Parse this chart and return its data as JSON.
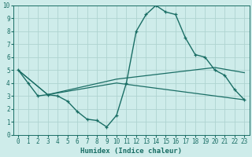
{
  "xlabel": "Humidex (Indice chaleur)",
  "xlim": [
    -0.5,
    23.5
  ],
  "ylim": [
    0,
    10
  ],
  "xtick_vals": [
    0,
    1,
    2,
    3,
    4,
    5,
    6,
    7,
    8,
    9,
    10,
    11,
    12,
    13,
    14,
    15,
    16,
    17,
    18,
    19,
    20,
    21,
    22,
    23
  ],
  "ytick_vals": [
    0,
    1,
    2,
    3,
    4,
    5,
    6,
    7,
    8,
    9,
    10
  ],
  "bg_color": "#ceecea",
  "grid_color": "#aed4d0",
  "line_color": "#1a6e65",
  "line1_x": [
    0,
    1,
    2,
    3,
    4,
    5,
    6,
    7,
    8,
    9,
    10,
    11,
    12,
    13,
    14,
    15,
    16,
    17,
    18,
    19,
    20,
    21,
    22,
    23
  ],
  "line1_y": [
    5.0,
    4.0,
    3.0,
    3.1,
    3.0,
    2.6,
    1.8,
    1.2,
    1.1,
    0.6,
    1.5,
    4.0,
    8.0,
    9.3,
    10.0,
    9.5,
    9.3,
    7.5,
    6.2,
    6.0,
    5.0,
    4.6,
    3.5,
    2.7
  ],
  "line2_x": [
    0,
    3,
    10,
    23
  ],
  "line2_y": [
    5.0,
    3.1,
    4.0,
    2.7
  ],
  "line3_x": [
    0,
    3,
    10,
    20,
    23
  ],
  "line3_y": [
    5.0,
    3.1,
    4.3,
    5.2,
    4.8
  ]
}
